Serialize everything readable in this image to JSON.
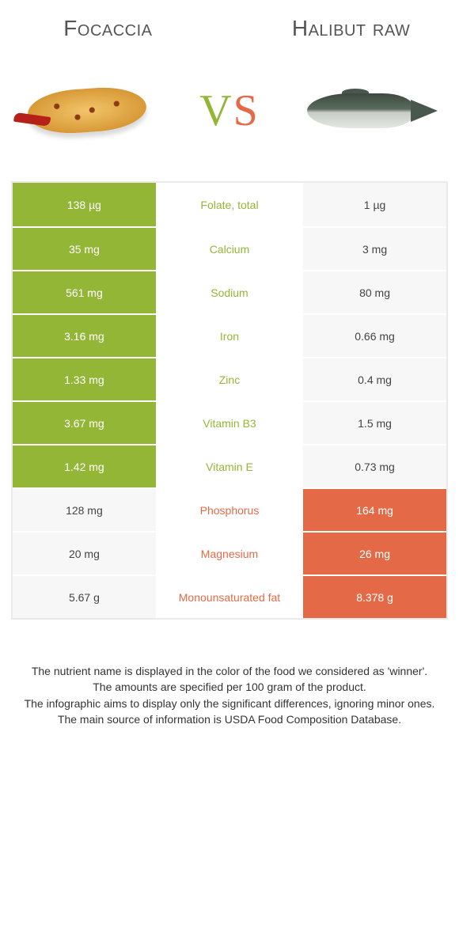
{
  "colors": {
    "green": "#94b636",
    "orange": "#e46a47"
  },
  "foods": {
    "left": {
      "name": "Focaccia"
    },
    "right": {
      "name": "Halibut raw"
    }
  },
  "vs": {
    "left_letter": "V",
    "right_letter": "S"
  },
  "rows": [
    {
      "label": "Folate, total",
      "left": "138 µg",
      "right": "1 µg",
      "winner": "left"
    },
    {
      "label": "Calcium",
      "left": "35 mg",
      "right": "3 mg",
      "winner": "left"
    },
    {
      "label": "Sodium",
      "left": "561 mg",
      "right": "80 mg",
      "winner": "left"
    },
    {
      "label": "Iron",
      "left": "3.16 mg",
      "right": "0.66 mg",
      "winner": "left"
    },
    {
      "label": "Zinc",
      "left": "1.33 mg",
      "right": "0.4 mg",
      "winner": "left"
    },
    {
      "label": "Vitamin B3",
      "left": "3.67 mg",
      "right": "1.5 mg",
      "winner": "left"
    },
    {
      "label": "Vitamin E",
      "left": "1.42 mg",
      "right": "0.73 mg",
      "winner": "left"
    },
    {
      "label": "Phosphorus",
      "left": "128 mg",
      "right": "164 mg",
      "winner": "right"
    },
    {
      "label": "Magnesium",
      "left": "20 mg",
      "right": "26 mg",
      "winner": "right"
    },
    {
      "label": "Monounsaturated fat",
      "left": "5.67 g",
      "right": "8.378 g",
      "winner": "right"
    }
  ],
  "footer": {
    "l1": "The nutrient name is displayed in the color of the food we considered as 'winner'.",
    "l2": "The amounts are specified per 100 gram of the product.",
    "l3": "The infographic aims to display only the significant differences, ignoring minor ones.",
    "l4": "The main source of information is USDA Food Composition Database."
  }
}
